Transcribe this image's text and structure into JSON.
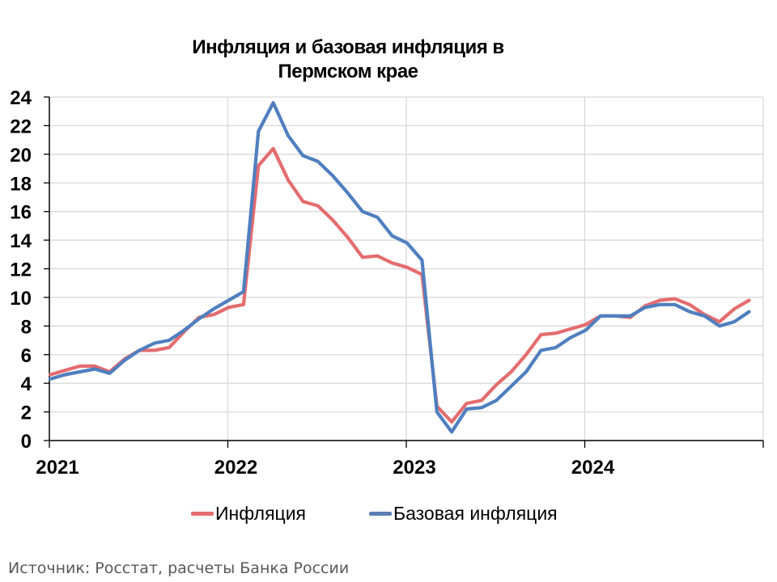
{
  "chart_data": {
    "type": "line",
    "title": "Инфляция и базовая инфляция в Пермском крае",
    "title_lines": [
      "Инфляция и базовая инфляция в",
      "Пермском крае"
    ],
    "xlabel": "",
    "ylabel": "",
    "ylim": [
      0,
      24
    ],
    "yticks": [
      0,
      2,
      4,
      6,
      8,
      10,
      12,
      14,
      16,
      18,
      20,
      22,
      24
    ],
    "xtick_labels": [
      "2021",
      "2022",
      "2023",
      "2024"
    ],
    "grid": true,
    "legend_position": "bottom",
    "x": [
      "2021-01",
      "2021-02",
      "2021-03",
      "2021-04",
      "2021-05",
      "2021-06",
      "2021-07",
      "2021-08",
      "2021-09",
      "2021-10",
      "2021-11",
      "2021-12",
      "2022-01",
      "2022-02",
      "2022-03",
      "2022-04",
      "2022-05",
      "2022-06",
      "2022-07",
      "2022-08",
      "2022-09",
      "2022-10",
      "2022-11",
      "2022-12",
      "2023-01",
      "2023-02",
      "2023-03",
      "2023-04",
      "2023-05",
      "2023-06",
      "2023-07",
      "2023-08",
      "2023-09",
      "2023-10",
      "2023-11",
      "2023-12",
      "2024-01",
      "2024-02",
      "2024-03",
      "2024-04",
      "2024-05",
      "2024-06",
      "2024-07",
      "2024-08",
      "2024-09",
      "2024-10",
      "2024-11",
      "2024-12"
    ],
    "series": [
      {
        "name": "Инфляция",
        "color": "#E46C6E",
        "values": [
          4.6,
          4.9,
          5.2,
          5.2,
          4.8,
          5.7,
          6.3,
          6.3,
          6.5,
          7.6,
          8.6,
          8.8,
          9.3,
          9.5,
          19.2,
          20.4,
          18.2,
          16.7,
          16.4,
          15.4,
          14.2,
          12.8,
          12.9,
          12.4,
          12.1,
          11.6,
          2.4,
          1.3,
          2.6,
          2.8,
          3.9,
          4.8,
          6.0,
          7.4,
          7.5,
          7.8,
          8.1,
          8.7,
          8.7,
          8.6,
          9.4,
          9.8,
          9.9,
          9.5,
          8.8,
          8.3,
          9.2,
          9.8
        ]
      },
      {
        "name": "Базовая инфляция",
        "color": "#4F7FBF",
        "values": [
          4.3,
          4.6,
          4.8,
          5.0,
          4.7,
          5.6,
          6.3,
          6.8,
          7.0,
          7.7,
          8.5,
          9.2,
          9.8,
          10.4,
          21.6,
          23.6,
          21.3,
          19.9,
          19.5,
          18.5,
          17.3,
          16.0,
          15.6,
          14.3,
          13.8,
          12.6,
          2.0,
          0.6,
          2.2,
          2.3,
          2.8,
          3.8,
          4.8,
          6.3,
          6.5,
          7.2,
          7.7,
          8.7,
          8.7,
          8.7,
          9.3,
          9.5,
          9.5,
          9.0,
          8.7,
          8.0,
          8.3,
          9.0
        ]
      }
    ]
  },
  "legend": {
    "items": [
      {
        "label": "Инфляция",
        "color": "#E46C6E"
      },
      {
        "label": "Базовая инфляция",
        "color": "#5B7FB3"
      }
    ]
  },
  "source": "Источник: Росстат, расчеты Банка России"
}
